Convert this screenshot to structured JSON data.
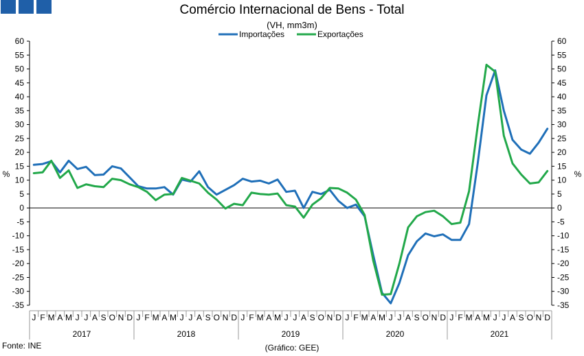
{
  "logo_color": "#1f5fa8",
  "source_label": "Fonte: INE",
  "credit_label": "(Gráfico: GEE)",
  "chart_data": {
    "type": "line",
    "title": "Comércio Internacional de Bens - Total",
    "subtitle": "(VH, mm3m)",
    "ylabel_left": "%",
    "ylabel_right": "%",
    "ylim": [
      -35,
      60
    ],
    "yticks": [
      60,
      55,
      50,
      45,
      40,
      35,
      30,
      25,
      20,
      15,
      10,
      5,
      0,
      -5,
      -10,
      -15,
      -20,
      -25,
      -30,
      -35
    ],
    "legend_position": "top-center",
    "grid": false,
    "month_labels": [
      "J",
      "F",
      "M",
      "A",
      "M",
      "J",
      "J",
      "A",
      "S",
      "O",
      "N",
      "D"
    ],
    "years": [
      "2017",
      "2018",
      "2019",
      "2020",
      "2021"
    ],
    "series": [
      {
        "name": "Importações",
        "color": "#1f6fb8",
        "values": [
          15.5,
          15.8,
          16.8,
          12.8,
          17.0,
          14.0,
          14.8,
          11.8,
          12.0,
          15.0,
          14.2,
          11.0,
          7.8,
          7.0,
          7.0,
          7.5,
          4.8,
          10.2,
          9.5,
          13.2,
          7.5,
          4.8,
          6.5,
          8.2,
          10.5,
          9.5,
          9.8,
          8.8,
          10.2,
          5.8,
          6.2,
          0.0,
          5.8,
          5.0,
          6.5,
          2.5,
          0.0,
          1.2,
          -3.0,
          -17.0,
          -30.5,
          -34.3,
          -27.0,
          -17.0,
          -12.0,
          -9.2,
          -10.2,
          -9.5,
          -11.5,
          -11.5,
          -5.8,
          16.0,
          40.5,
          49.5,
          35.0,
          24.5,
          21.0,
          19.5,
          23.5,
          28.5
        ]
      },
      {
        "name": "Exportações",
        "color": "#22a84a",
        "values": [
          12.5,
          12.8,
          17.0,
          10.8,
          13.5,
          7.2,
          8.5,
          7.8,
          7.5,
          10.5,
          10.0,
          8.5,
          7.5,
          5.8,
          2.8,
          4.8,
          5.0,
          10.8,
          9.8,
          8.8,
          5.5,
          3.0,
          -0.2,
          1.5,
          1.0,
          5.5,
          5.0,
          4.8,
          5.2,
          1.0,
          0.5,
          -3.5,
          1.2,
          3.5,
          7.2,
          7.0,
          5.5,
          3.0,
          -2.5,
          -19.0,
          -31.2,
          -31.0,
          -20.0,
          -7.0,
          -3.0,
          -1.5,
          -1.0,
          -3.0,
          -5.8,
          -5.3,
          6.0,
          29.5,
          51.5,
          49.0,
          26.0,
          16.0,
          12.0,
          8.8,
          9.2,
          13.3
        ]
      }
    ]
  }
}
